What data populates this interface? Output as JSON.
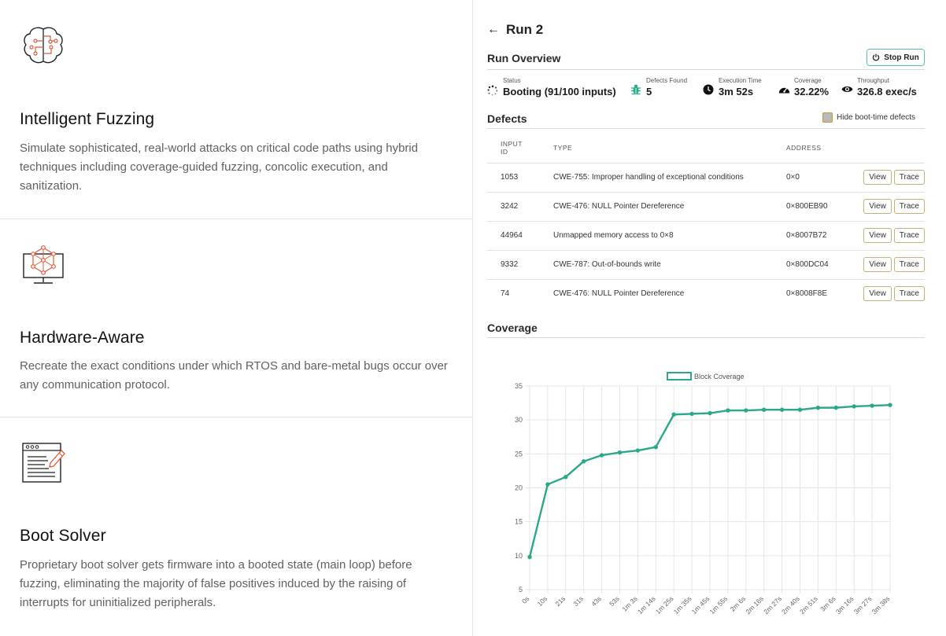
{
  "features": [
    {
      "icon": "brain-circuit-icon",
      "title": "Intelligent Fuzzing",
      "description": "Simulate sophisticated, real-world attacks on critical code paths using hybrid techniques including coverage-guided fuzzing, concolic execution, and sanitization."
    },
    {
      "icon": "monitor-network-icon",
      "title": "Hardware-Aware",
      "description": "Recreate the exact conditions under which RTOS and bare-metal bugs occur over any communication protocol."
    },
    {
      "icon": "code-window-pencil-icon",
      "title": "Boot Solver",
      "description": "Proprietary boot solver gets firmware into a booted state (main loop) before fuzzing, eliminating the majority of false positives induced by the raising of interrupts for uninitialized peripherals."
    }
  ],
  "run": {
    "back_icon": "arrow-left-icon",
    "title": "Run 2",
    "overview_title": "Run Overview",
    "stop_label": "Stop Run",
    "stats": {
      "status": {
        "label": "Status",
        "value": "Booting (91/100 inputs)"
      },
      "defects": {
        "label": "Defects Found",
        "value": "5"
      },
      "time": {
        "label": "Execution Time",
        "value": "3m 52s"
      },
      "coverage": {
        "label": "Coverage",
        "value": "32.22%"
      },
      "throughput": {
        "label": "Throughput",
        "value": "326.8 exec/s"
      }
    },
    "defects_title": "Defects",
    "hide_boot_label": "Hide boot-time defects",
    "hide_boot_checked": false,
    "table": {
      "headers": {
        "input_id_line1": "INPUT",
        "input_id_line2": "ID",
        "type": "TYPE",
        "address": "ADDRESS"
      },
      "view_label": "View",
      "trace_label": "Trace",
      "rows": [
        {
          "id": "1053",
          "type": "CWE-755: Improper handling of exceptional conditions",
          "address": "0×0"
        },
        {
          "id": "3242",
          "type": "CWE-476: NULL Pointer Dereference",
          "address": "0×800EB90"
        },
        {
          "id": "44964",
          "type": "Unmapped memory access to 0×8",
          "address": "0×8007B72"
        },
        {
          "id": "9332",
          "type": "CWE-787: Out-of-bounds write",
          "address": "0×800DC04"
        },
        {
          "id": "74",
          "type": "CWE-476: NULL Pointer Dereference",
          "address": "0×8008F8E"
        }
      ]
    },
    "coverage_title": "Coverage"
  },
  "chart_data": {
    "type": "line",
    "title": "",
    "xlabel": "",
    "ylabel": "",
    "legend_position": "top-center",
    "grid": true,
    "series_color": "#2aa88a",
    "series": [
      {
        "name": "Block Coverage",
        "values": [
          9.8,
          20.5,
          21.6,
          23.9,
          24.8,
          25.2,
          25.5,
          26.0,
          30.8,
          30.9,
          31.0,
          31.4,
          31.4,
          31.5,
          31.5,
          31.5,
          31.8,
          31.8,
          32.0,
          32.1,
          32.2
        ]
      }
    ],
    "categories": [
      "0s",
      "10s",
      "21s",
      "31s",
      "43s",
      "53s",
      "1m 3s",
      "1m 14s",
      "1m 25s",
      "1m 35s",
      "1m 45s",
      "1m 55s",
      "2m 6s",
      "2m 16s",
      "2m 27s",
      "2m 40s",
      "2m 51s",
      "3m 6s",
      "3m 16s",
      "3m 27s",
      "3m 38s"
    ],
    "ylim": [
      5,
      35
    ],
    "yticks": [
      5,
      10,
      15,
      20,
      25,
      30,
      35
    ]
  }
}
